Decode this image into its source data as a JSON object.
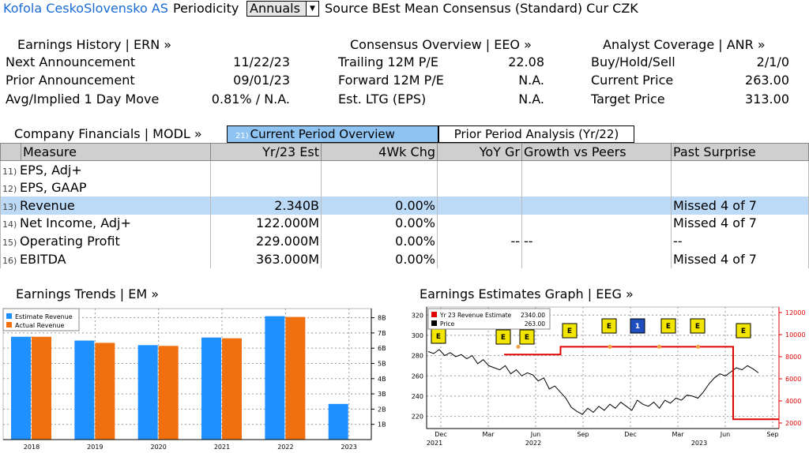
{
  "header": {
    "company": "Kofola CeskoSlovensko AS",
    "periodicity_label": "Periodicity",
    "periodicity_value": "Annuals",
    "source_text": "Source BEst Mean Consensus (Standard) Cur CZK"
  },
  "earnings_history": {
    "title": "Earnings History | ERN »",
    "rows": [
      {
        "label": "Next Announcement",
        "value": "11/22/23"
      },
      {
        "label": "Prior Announcement",
        "value": "09/01/23"
      },
      {
        "label": "Avg/Implied 1 Day Move",
        "value": "0.81% / N.A."
      }
    ]
  },
  "consensus": {
    "title": "Consensus Overview | EEO »",
    "rows": [
      {
        "label": "Trailing 12M P/E",
        "value": "22.08"
      },
      {
        "label": "Forward 12M P/E",
        "value": "N.A."
      },
      {
        "label": "Est. LTG (EPS)",
        "value": "N.A."
      }
    ]
  },
  "analyst": {
    "title": "Analyst Coverage | ANR »",
    "rows": [
      {
        "label": "Buy/Hold/Sell",
        "value": "2/1/0"
      },
      {
        "label": "Current Price",
        "value": "263.00"
      },
      {
        "label": "Target Price",
        "value": "313.00"
      }
    ]
  },
  "financials": {
    "title": "Company Financials | MODL »",
    "tab_active_num": "21)",
    "tab_active": "Current Period Overview (Yr/23)",
    "tab_inactive": "Prior Period Analysis (Yr/22)",
    "columns": [
      "Measure",
      "Yr/23 Est",
      "4Wk Chg",
      "YoY Gr",
      "Growth vs Peers",
      "Past Surprise"
    ],
    "rows": [
      {
        "num": "11)",
        "measure": "EPS, Adj+",
        "est": "",
        "chg": "",
        "yoy": "",
        "peers": "",
        "surprise": ""
      },
      {
        "num": "12)",
        "measure": "EPS, GAAP",
        "est": "",
        "chg": "",
        "yoy": "",
        "peers": "",
        "surprise": ""
      },
      {
        "num": "13)",
        "measure": "Revenue",
        "est": "2.340B",
        "chg": "0.00%",
        "yoy": "",
        "peers": "",
        "surprise": "Missed 4 of 7"
      },
      {
        "num": "14)",
        "measure": "Net Income, Adj+",
        "est": "122.000M",
        "chg": "0.00%",
        "yoy": "",
        "peers": "",
        "surprise": "Missed 4 of 7"
      },
      {
        "num": "15)",
        "measure": "Operating Profit",
        "est": "229.000M",
        "chg": "0.00%",
        "yoy": "--",
        "peers": "--",
        "surprise": "--"
      },
      {
        "num": "16)",
        "measure": "EBITDA",
        "est": "363.000M",
        "chg": "0.00%",
        "yoy": "",
        "peers": "",
        "surprise": "Missed 4 of 7"
      }
    ]
  },
  "trends": {
    "title": "Earnings Trends | EM »"
  },
  "estimates_graph": {
    "title": "Earnings Estimates Graph | EEG »"
  },
  "colors": {
    "estimate": "#1e90ff",
    "actual": "#f07010",
    "price": "#000000",
    "rev_est_line": "#e00000",
    "selected_row": "#bcd9f5",
    "active_tab": "#8ec3f2"
  },
  "chart_data": [
    {
      "type": "bar",
      "categories": [
        "2018",
        "2019",
        "2020",
        "2021",
        "2022",
        "2023"
      ],
      "series": [
        {
          "name": "Estimate Revenue",
          "values": [
            6.75,
            6.5,
            6.2,
            6.7,
            8.1,
            2.34
          ]
        },
        {
          "name": "Actual Revenue",
          "values": [
            6.75,
            6.35,
            6.15,
            6.65,
            8.05,
            null
          ]
        }
      ],
      "y_ticks": [
        "1B",
        "2B",
        "3B",
        "4B",
        "5B",
        "6B",
        "7B",
        "8B"
      ],
      "ylim": [
        0,
        8.6
      ],
      "y_axis_side": "right",
      "legend": "top-left",
      "grid": true
    },
    {
      "type": "line",
      "x_ticks": [
        "Dec",
        "Mar",
        "Jun",
        "Sep",
        "Dec",
        "Mar",
        "Jun",
        "Sep"
      ],
      "x_year_labels": [
        "2021",
        "2022",
        "2023"
      ],
      "left_axis": {
        "ticks": [
          220,
          240,
          260,
          280,
          300,
          320
        ],
        "range": [
          208,
          328
        ]
      },
      "right_axis": {
        "ticks": [
          2000,
          4000,
          6000,
          8000,
          10000,
          12000
        ],
        "range": [
          1500,
          12500
        ]
      },
      "series": [
        {
          "name": "Price",
          "axis": "left",
          "legend_value": "263.00",
          "values": [
            284,
            282,
            286,
            280,
            283,
            279,
            281,
            277,
            280,
            272,
            276,
            270,
            268,
            266,
            270,
            262,
            266,
            260,
            263,
            261,
            255,
            258,
            247,
            250,
            244,
            238,
            229,
            225,
            222,
            228,
            224,
            230,
            226,
            232,
            228,
            234,
            230,
            226,
            236,
            232,
            230,
            234,
            228,
            236,
            233,
            238,
            236,
            241,
            240,
            238,
            244,
            252,
            258,
            262,
            260,
            264,
            268,
            266,
            270,
            267,
            263
          ]
        },
        {
          "name": "Yr 23 Revenue Estimate",
          "axis": "right",
          "legend_value": "2340.00",
          "steps": [
            {
              "from": 0.22,
              "to": 0.38,
              "value": 8200
            },
            {
              "from": 0.38,
              "to": 0.87,
              "value": 8900
            },
            {
              "from": 0.87,
              "to": 1.0,
              "value": 2340
            }
          ]
        }
      ],
      "event_markers": [
        "E",
        "E",
        "E",
        "E",
        "E",
        "1",
        "E",
        "E",
        "E"
      ],
      "grid": true
    }
  ]
}
